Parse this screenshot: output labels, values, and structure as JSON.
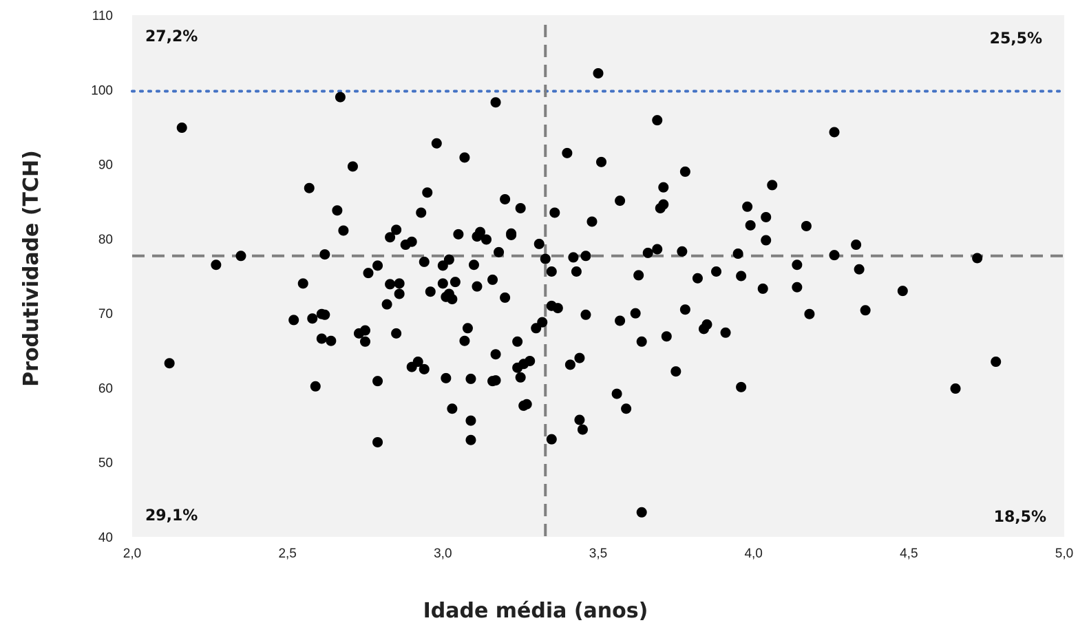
{
  "chart_data": {
    "type": "scatter",
    "xlabel": "Idade média (anos)",
    "ylabel": "Produtividade  (TCH)",
    "xlim": [
      2.0,
      5.0
    ],
    "ylim": [
      40,
      110
    ],
    "xticks": [
      2.0,
      2.5,
      3.0,
      3.5,
      4.0,
      4.5,
      5.0
    ],
    "xtick_labels": [
      "2,0",
      "2,5",
      "3,0",
      "3,5",
      "4,0",
      "4,5",
      "5,0"
    ],
    "yticks": [
      40,
      50,
      60,
      70,
      80,
      90,
      100,
      110
    ],
    "ytick_labels": [
      "40",
      "50",
      "60",
      "70",
      "80",
      "90",
      "100",
      "110"
    ],
    "grid": false,
    "background_color": "#f2f2f2",
    "point_color": "#000000",
    "reference_lines": {
      "mean_x": 3.33,
      "mean_y": 77.7,
      "mean_color": "#808080",
      "target_y": 99.8,
      "target_color": "#4472c4"
    },
    "quadrant_labels": {
      "top_left": "27,2%",
      "top_right": "25,5%",
      "bottom_left": "29,1%",
      "bottom_right": "18,5%"
    },
    "points": [
      [
        2.12,
        63.3
      ],
      [
        2.16,
        94.9
      ],
      [
        2.27,
        76.5
      ],
      [
        2.35,
        77.7
      ],
      [
        2.52,
        69.1
      ],
      [
        2.55,
        74.0
      ],
      [
        2.57,
        86.8
      ],
      [
        2.58,
        69.3
      ],
      [
        2.59,
        60.2
      ],
      [
        2.61,
        69.9
      ],
      [
        2.61,
        66.6
      ],
      [
        2.62,
        77.9
      ],
      [
        2.62,
        69.8
      ],
      [
        2.64,
        66.3
      ],
      [
        2.66,
        83.8
      ],
      [
        2.67,
        99.0
      ],
      [
        2.68,
        81.1
      ],
      [
        2.71,
        89.7
      ],
      [
        2.73,
        67.3
      ],
      [
        2.75,
        67.7
      ],
      [
        2.75,
        66.2
      ],
      [
        2.76,
        75.4
      ],
      [
        2.79,
        76.4
      ],
      [
        2.79,
        60.9
      ],
      [
        2.79,
        52.7
      ],
      [
        2.82,
        71.2
      ],
      [
        2.83,
        80.2
      ],
      [
        2.83,
        73.9
      ],
      [
        2.85,
        81.2
      ],
      [
        2.85,
        67.3
      ],
      [
        2.86,
        74.0
      ],
      [
        2.86,
        72.6
      ],
      [
        2.88,
        79.2
      ],
      [
        2.9,
        79.6
      ],
      [
        2.9,
        62.8
      ],
      [
        2.92,
        63.5
      ],
      [
        2.93,
        83.5
      ],
      [
        2.94,
        76.9
      ],
      [
        2.94,
        62.5
      ],
      [
        2.95,
        86.2
      ],
      [
        2.96,
        72.9
      ],
      [
        2.98,
        92.8
      ],
      [
        3.0,
        76.4
      ],
      [
        3.0,
        74.0
      ],
      [
        3.01,
        72.2
      ],
      [
        3.01,
        61.3
      ],
      [
        3.02,
        72.6
      ],
      [
        3.02,
        77.2
      ],
      [
        3.03,
        57.2
      ],
      [
        3.03,
        71.9
      ],
      [
        3.04,
        74.2
      ],
      [
        3.05,
        80.6
      ],
      [
        3.07,
        90.9
      ],
      [
        3.07,
        66.3
      ],
      [
        3.08,
        68.0
      ],
      [
        3.09,
        61.2
      ],
      [
        3.09,
        55.6
      ],
      [
        3.09,
        53.0
      ],
      [
        3.1,
        76.5
      ],
      [
        3.11,
        73.6
      ],
      [
        3.11,
        80.3
      ],
      [
        3.12,
        80.9
      ],
      [
        3.14,
        79.9
      ],
      [
        3.16,
        74.5
      ],
      [
        3.16,
        60.9
      ],
      [
        3.17,
        64.5
      ],
      [
        3.17,
        61.0
      ],
      [
        3.17,
        98.3
      ],
      [
        3.18,
        78.2
      ],
      [
        3.2,
        72.1
      ],
      [
        3.2,
        85.3
      ],
      [
        3.22,
        80.5
      ],
      [
        3.22,
        80.7
      ],
      [
        3.24,
        66.2
      ],
      [
        3.24,
        62.7
      ],
      [
        3.25,
        84.1
      ],
      [
        3.25,
        61.4
      ],
      [
        3.26,
        63.2
      ],
      [
        3.26,
        57.6
      ],
      [
        3.27,
        57.8
      ],
      [
        3.28,
        63.6
      ],
      [
        3.3,
        68.0
      ],
      [
        3.31,
        79.3
      ],
      [
        3.32,
        68.8
      ],
      [
        3.33,
        77.3
      ],
      [
        3.35,
        75.6
      ],
      [
        3.35,
        71.0
      ],
      [
        3.35,
        53.1
      ],
      [
        3.36,
        83.5
      ],
      [
        3.37,
        70.7
      ],
      [
        3.4,
        91.5
      ],
      [
        3.41,
        63.1
      ],
      [
        3.42,
        77.5
      ],
      [
        3.43,
        75.6
      ],
      [
        3.44,
        64.0
      ],
      [
        3.44,
        55.7
      ],
      [
        3.45,
        54.4
      ],
      [
        3.46,
        77.7
      ],
      [
        3.46,
        69.8
      ],
      [
        3.48,
        82.3
      ],
      [
        3.5,
        102.2
      ],
      [
        3.51,
        90.3
      ],
      [
        3.56,
        59.2
      ],
      [
        3.57,
        85.1
      ],
      [
        3.57,
        69.0
      ],
      [
        3.59,
        57.2
      ],
      [
        3.62,
        70.0
      ],
      [
        3.63,
        75.1
      ],
      [
        3.64,
        66.2
      ],
      [
        3.64,
        43.3
      ],
      [
        3.66,
        78.1
      ],
      [
        3.69,
        78.6
      ],
      [
        3.69,
        95.9
      ],
      [
        3.7,
        84.1
      ],
      [
        3.71,
        84.6
      ],
      [
        3.71,
        86.9
      ],
      [
        3.72,
        66.9
      ],
      [
        3.75,
        62.2
      ],
      [
        3.77,
        78.3
      ],
      [
        3.78,
        70.5
      ],
      [
        3.78,
        89.0
      ],
      [
        3.82,
        74.7
      ],
      [
        3.84,
        67.9
      ],
      [
        3.85,
        68.5
      ],
      [
        3.88,
        75.6
      ],
      [
        3.91,
        67.4
      ],
      [
        3.95,
        78.0
      ],
      [
        3.96,
        60.1
      ],
      [
        3.96,
        75.0
      ],
      [
        3.98,
        84.3
      ],
      [
        3.99,
        81.8
      ],
      [
        4.03,
        73.3
      ],
      [
        4.04,
        82.9
      ],
      [
        4.04,
        79.8
      ],
      [
        4.06,
        87.2
      ],
      [
        4.14,
        76.5
      ],
      [
        4.14,
        73.5
      ],
      [
        4.17,
        81.7
      ],
      [
        4.18,
        69.9
      ],
      [
        4.26,
        94.3
      ],
      [
        4.26,
        77.8
      ],
      [
        4.33,
        79.2
      ],
      [
        4.34,
        75.9
      ],
      [
        4.36,
        70.4
      ],
      [
        4.48,
        73.0
      ],
      [
        4.65,
        59.9
      ],
      [
        4.72,
        77.4
      ],
      [
        4.78,
        63.5
      ]
    ]
  }
}
